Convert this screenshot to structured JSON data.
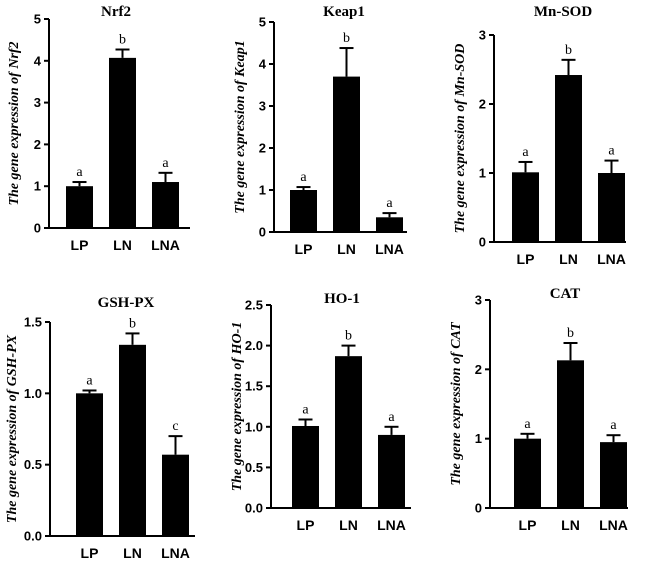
{
  "chart_data": [
    {
      "type": "bar",
      "title": "Nrf2",
      "ylabel": "The gene expression of Nrf2",
      "categories": [
        "LP",
        "LN",
        "LNA"
      ],
      "values": [
        1.0,
        4.07,
        1.1
      ],
      "errors": [
        0.1,
        0.2,
        0.22
      ],
      "letters": [
        "a",
        "b",
        "a"
      ],
      "ylim": [
        0,
        5
      ],
      "yticks": [
        "0",
        "1",
        "2",
        "3",
        "4",
        "5"
      ],
      "ytick_values": [
        0,
        1,
        2,
        3,
        4,
        5
      ]
    },
    {
      "type": "bar",
      "title": "Keap1",
      "ylabel": "The gene expression of Keap1",
      "categories": [
        "LP",
        "LN",
        "LNA"
      ],
      "values": [
        1.0,
        3.7,
        0.35
      ],
      "errors": [
        0.07,
        0.68,
        0.1
      ],
      "letters": [
        "a",
        "b",
        "a"
      ],
      "ylim": [
        0,
        5
      ],
      "yticks": [
        "0",
        "1",
        "2",
        "3",
        "4",
        "5"
      ],
      "ytick_values": [
        0,
        1,
        2,
        3,
        4,
        5
      ]
    },
    {
      "type": "bar",
      "title": "Mn-SOD",
      "ylabel": "The gene expression of Mn-SOD",
      "categories": [
        "LP",
        "LN",
        "LNA"
      ],
      "values": [
        1.01,
        2.42,
        1.0
      ],
      "errors": [
        0.15,
        0.22,
        0.18
      ],
      "letters": [
        "a",
        "b",
        "a"
      ],
      "ylim": [
        0,
        3
      ],
      "yticks": [
        "0",
        "1",
        "2",
        "3"
      ],
      "ytick_values": [
        0,
        1,
        2,
        3
      ]
    },
    {
      "type": "bar",
      "title": "GSH-PX",
      "ylabel": "The gene expression of GSH-PX",
      "categories": [
        "LP",
        "LN",
        "LNA"
      ],
      "values": [
        1.0,
        1.34,
        0.57
      ],
      "errors": [
        0.02,
        0.08,
        0.13
      ],
      "letters": [
        "a",
        "b",
        "c"
      ],
      "ylim": [
        0,
        1.5
      ],
      "yticks": [
        "0.0",
        "0.5",
        "1.0",
        "1.5"
      ],
      "ytick_values": [
        0,
        0.5,
        1.0,
        1.5
      ]
    },
    {
      "type": "bar",
      "title": "HO-1",
      "ylabel": "The gene expression of HO-1",
      "categories": [
        "LP",
        "LN",
        "LNA"
      ],
      "values": [
        1.01,
        1.87,
        0.9
      ],
      "errors": [
        0.08,
        0.13,
        0.1
      ],
      "letters": [
        "a",
        "b",
        "a"
      ],
      "ylim": [
        0,
        2.5
      ],
      "yticks": [
        "0.0",
        "0.5",
        "1.0",
        "1.5",
        "2.0",
        "2.5"
      ],
      "ytick_values": [
        0,
        0.5,
        1.0,
        1.5,
        2.0,
        2.5
      ]
    },
    {
      "type": "bar",
      "title": "CAT",
      "ylabel": "The gene expression of CAT",
      "categories": [
        "LP",
        "LN",
        "LNA"
      ],
      "values": [
        1.0,
        2.13,
        0.95
      ],
      "errors": [
        0.07,
        0.25,
        0.1
      ],
      "letters": [
        "a",
        "b",
        "a"
      ],
      "ylim": [
        0,
        3
      ],
      "yticks": [
        "0",
        "1",
        "2",
        "3"
      ],
      "ytick_values": [
        0,
        1,
        2,
        3
      ]
    }
  ],
  "colors": {
    "bar": "#000000",
    "axis": "#000000",
    "background": "#ffffff"
  }
}
